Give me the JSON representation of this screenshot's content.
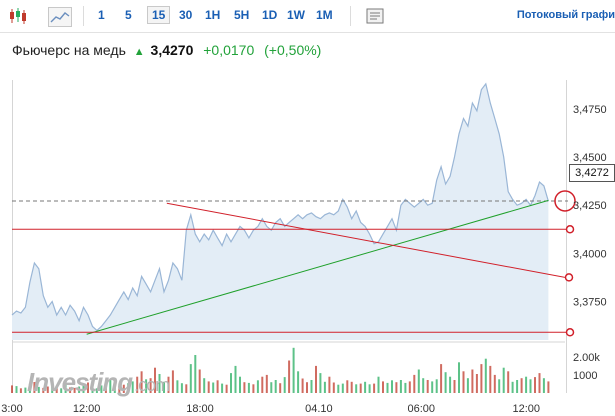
{
  "toolbar": {
    "icons": [
      "candlestick-chart-icon",
      "area-chart-icon",
      "print-icon"
    ],
    "intervals": [
      "1",
      "5",
      "15",
      "30",
      "1H",
      "5H",
      "1D",
      "1W",
      "1M"
    ],
    "active_interval": "15",
    "stream_label": "Потоковый графи"
  },
  "header": {
    "name": "Фьючерс на медь",
    "arrow": "▲",
    "price": "3,4270",
    "change": "+0,0170",
    "change_pct": "(+0,50%)"
  },
  "price_badge": "3,4272",
  "logo": {
    "text": "Investing",
    "suffix": ".com"
  },
  "colors": {
    "link": "#1a5fb4",
    "up": "#22a23a",
    "area_fill": "#e3edf6",
    "area_line": "#9ab6d6",
    "trend_green": "#1fa02a",
    "trend_red": "#d1202a",
    "volume_red": "#c0392b",
    "volume_green": "#27ae60"
  },
  "chart_data": {
    "type": "area",
    "y_ticks": [
      "3,4750",
      "3,4500",
      "3,4250",
      "3,4000",
      "3,3750"
    ],
    "y_tick_values": [
      3.475,
      3.45,
      3.425,
      3.4,
      3.375
    ],
    "ylim": [
      3.355,
      3.49
    ],
    "volume_ticks": [
      "2.00k",
      "1000"
    ],
    "volume_tick_values": [
      2000,
      1000
    ],
    "x_ticks": [
      "3:00",
      "12:00",
      "18:00",
      "04.10",
      "06:00",
      "12:00"
    ],
    "x_tick_positions": [
      0,
      0.135,
      0.34,
      0.555,
      0.74,
      0.93
    ],
    "last_price": 3.4272,
    "series": [
      {
        "values": [
          3.368,
          3.37,
          3.369,
          3.372,
          3.385,
          3.395,
          3.392,
          3.378,
          3.372,
          3.375,
          3.368,
          3.372,
          3.368,
          3.373,
          3.37,
          3.365,
          3.372,
          3.368,
          3.362,
          3.36,
          3.362,
          3.365,
          3.368,
          3.372,
          3.376,
          3.38,
          3.376,
          3.382,
          3.378,
          3.388,
          3.384,
          3.38,
          3.386,
          3.392,
          3.38,
          3.386,
          3.395,
          3.392,
          3.386,
          3.412,
          3.42,
          3.41,
          3.406,
          3.41,
          3.407,
          3.412,
          3.408,
          3.404,
          3.41,
          3.406,
          3.41,
          3.414,
          3.412,
          3.408,
          3.412,
          3.414,
          3.418,
          3.414,
          3.412,
          3.416,
          3.418,
          3.414,
          3.416,
          3.418,
          3.42,
          3.418,
          3.42,
          3.421,
          3.419,
          3.418,
          3.42,
          3.421,
          3.42,
          3.422,
          3.428,
          3.424,
          3.418,
          3.422,
          3.416,
          3.414,
          3.41,
          3.405,
          3.406,
          3.41,
          3.414,
          3.418,
          3.412,
          3.425,
          3.428,
          3.426,
          3.424,
          3.426,
          3.428,
          3.425,
          3.426,
          3.438,
          3.445,
          3.436,
          3.44,
          3.45,
          3.462,
          3.47,
          3.466,
          3.478,
          3.474,
          3.485,
          3.488,
          3.478,
          3.47,
          3.462,
          3.45,
          3.432,
          3.428,
          3.425,
          3.426,
          3.428,
          3.425,
          3.43,
          3.437,
          3.435,
          3.427
        ]
      }
    ],
    "trendlines": [
      {
        "color": "green",
        "from": [
          0.135,
          3.358
        ],
        "to": [
          0.97,
          3.4275
        ]
      },
      {
        "color": "red",
        "from": [
          0.28,
          3.426
        ],
        "to": [
          1.0,
          3.3875
        ]
      },
      {
        "color": "red",
        "horizontal": true,
        "y": 3.4125
      },
      {
        "color": "red",
        "horizontal": true,
        "y": 3.359
      }
    ],
    "dashed_price_line": 3.4272,
    "volume": [
      420,
      380,
      260,
      300,
      520,
      610,
      340,
      280,
      360,
      430,
      300,
      260,
      500,
      310,
      280,
      360,
      420,
      580,
      300,
      260,
      420,
      510,
      720,
      600,
      380,
      460,
      540,
      640,
      900,
      1200,
      760,
      820,
      1400,
      1050,
      620,
      900,
      1250,
      700,
      540,
      480,
      1600,
      2100,
      1300,
      820,
      640,
      580,
      700,
      520,
      460,
      1100,
      1500,
      900,
      600,
      560,
      480,
      700,
      900,
      1000,
      600,
      720,
      540,
      880,
      1800,
      2500,
      1200,
      800,
      600,
      720,
      1500,
      1100,
      620,
      900,
      580,
      460,
      520,
      700,
      620,
      480,
      520,
      620,
      480,
      520,
      900,
      640,
      560,
      700,
      600,
      720,
      560,
      640,
      1000,
      1300,
      820,
      720,
      640,
      760,
      1600,
      1150,
      900,
      720,
      1700,
      1200,
      820,
      1300,
      1050,
      1600,
      1900,
      1500,
      1000,
      760,
      1400,
      1200,
      620,
      720,
      820,
      900,
      760,
      880,
      1100,
      820,
      640
    ],
    "volume_up": [
      0,
      1,
      0,
      1,
      1,
      0,
      1,
      0,
      0,
      1,
      0,
      1,
      1,
      0,
      0,
      1,
      1,
      0,
      1,
      1,
      1,
      0,
      1,
      1,
      0,
      0,
      1,
      1,
      0,
      0,
      1,
      0,
      0,
      1,
      1,
      0,
      0,
      1,
      1,
      0,
      1,
      1,
      0,
      1,
      0,
      1,
      0,
      1,
      0,
      1,
      1,
      1,
      0,
      1,
      0,
      1,
      0,
      0,
      1,
      1,
      0,
      1,
      0,
      1,
      1,
      0,
      0,
      1,
      0,
      1,
      1,
      0,
      0,
      1,
      1,
      0,
      0,
      1,
      0,
      1,
      1,
      0,
      1,
      0,
      1,
      1,
      0,
      1,
      1,
      0,
      0,
      1,
      1,
      0,
      1,
      1,
      0,
      1,
      1,
      0,
      1,
      0,
      1,
      0,
      0,
      0,
      1,
      0,
      0,
      1,
      1,
      0,
      1,
      1,
      0,
      1,
      1,
      0,
      0,
      1
    ]
  }
}
